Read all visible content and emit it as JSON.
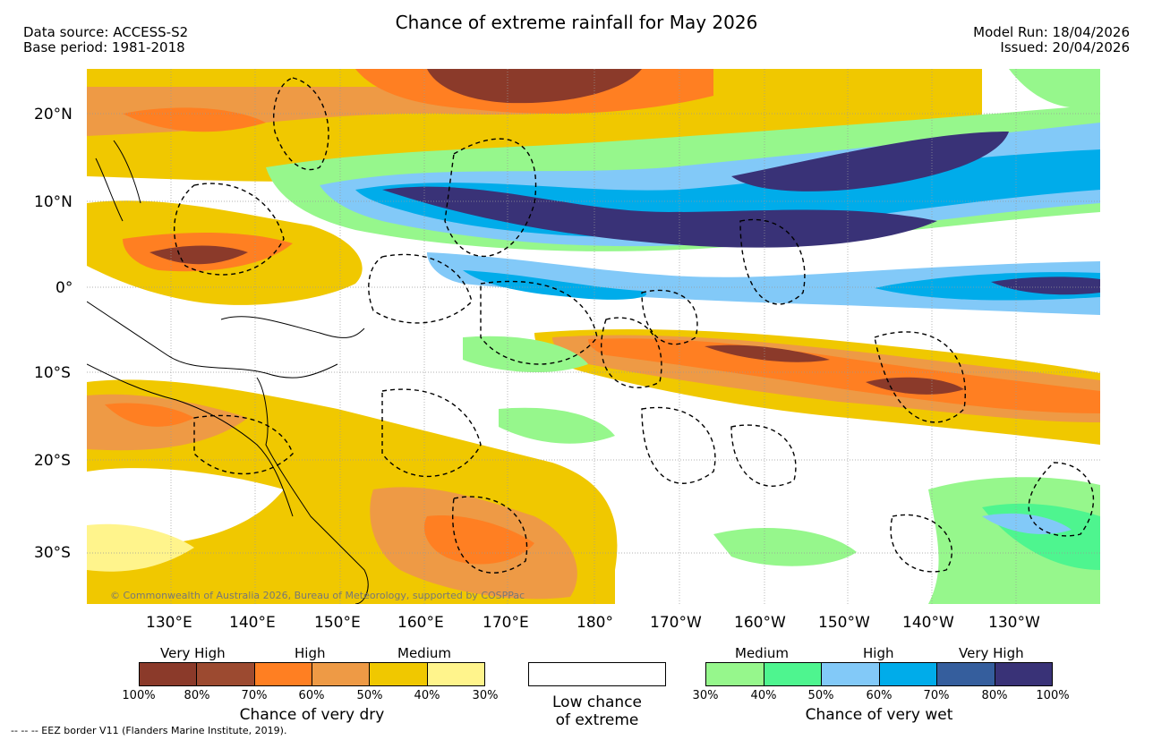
{
  "header": {
    "title": "Chance of extreme rainfall for May 2026",
    "data_source": "Data source: ACCESS-S2",
    "base_period": "Base period: 1981-2018",
    "model_run": "Model Run: 18/04/2026",
    "issued": "Issued: 20/04/2026"
  },
  "map": {
    "copyright": "© Commonwealth of Australia 2026, Bureau of Meteorology, supported by COSPPac",
    "lat_ticks": [
      "20°N",
      "10°N",
      "0°",
      "10°S",
      "20°S",
      "30°S"
    ],
    "lon_ticks": [
      "130°E",
      "140°E",
      "150°E",
      "160°E",
      "170°E",
      "180°",
      "170°W",
      "160°W",
      "150°W",
      "140°W",
      "130°W"
    ]
  },
  "legend": {
    "dry": {
      "levels": [
        "Very High",
        "High",
        "Medium"
      ],
      "ticks": [
        "100%",
        "80%",
        "70%",
        "60%",
        "50%",
        "40%",
        "30%"
      ],
      "caption": "Chance of very dry",
      "colors": [
        "#8b3a2a",
        "#9c4a30",
        "#ff7f22",
        "#ee9a45",
        "#f0c800",
        "#fff48c"
      ]
    },
    "low": {
      "caption_line1": "Low chance",
      "caption_line2": "of extreme"
    },
    "wet": {
      "levels": [
        "Medium",
        "High",
        "Very High"
      ],
      "ticks": [
        "30%",
        "40%",
        "50%",
        "60%",
        "70%",
        "80%",
        "100%"
      ],
      "caption": "Chance of very wet",
      "colors": [
        "#96f78c",
        "#4ef58f",
        "#82c9f8",
        "#00acea",
        "#355e9d",
        "#393277"
      ]
    }
  },
  "footer": {
    "eez": "--  --  -- EEZ border V11 (Flanders Marine Institute, 2019)."
  }
}
